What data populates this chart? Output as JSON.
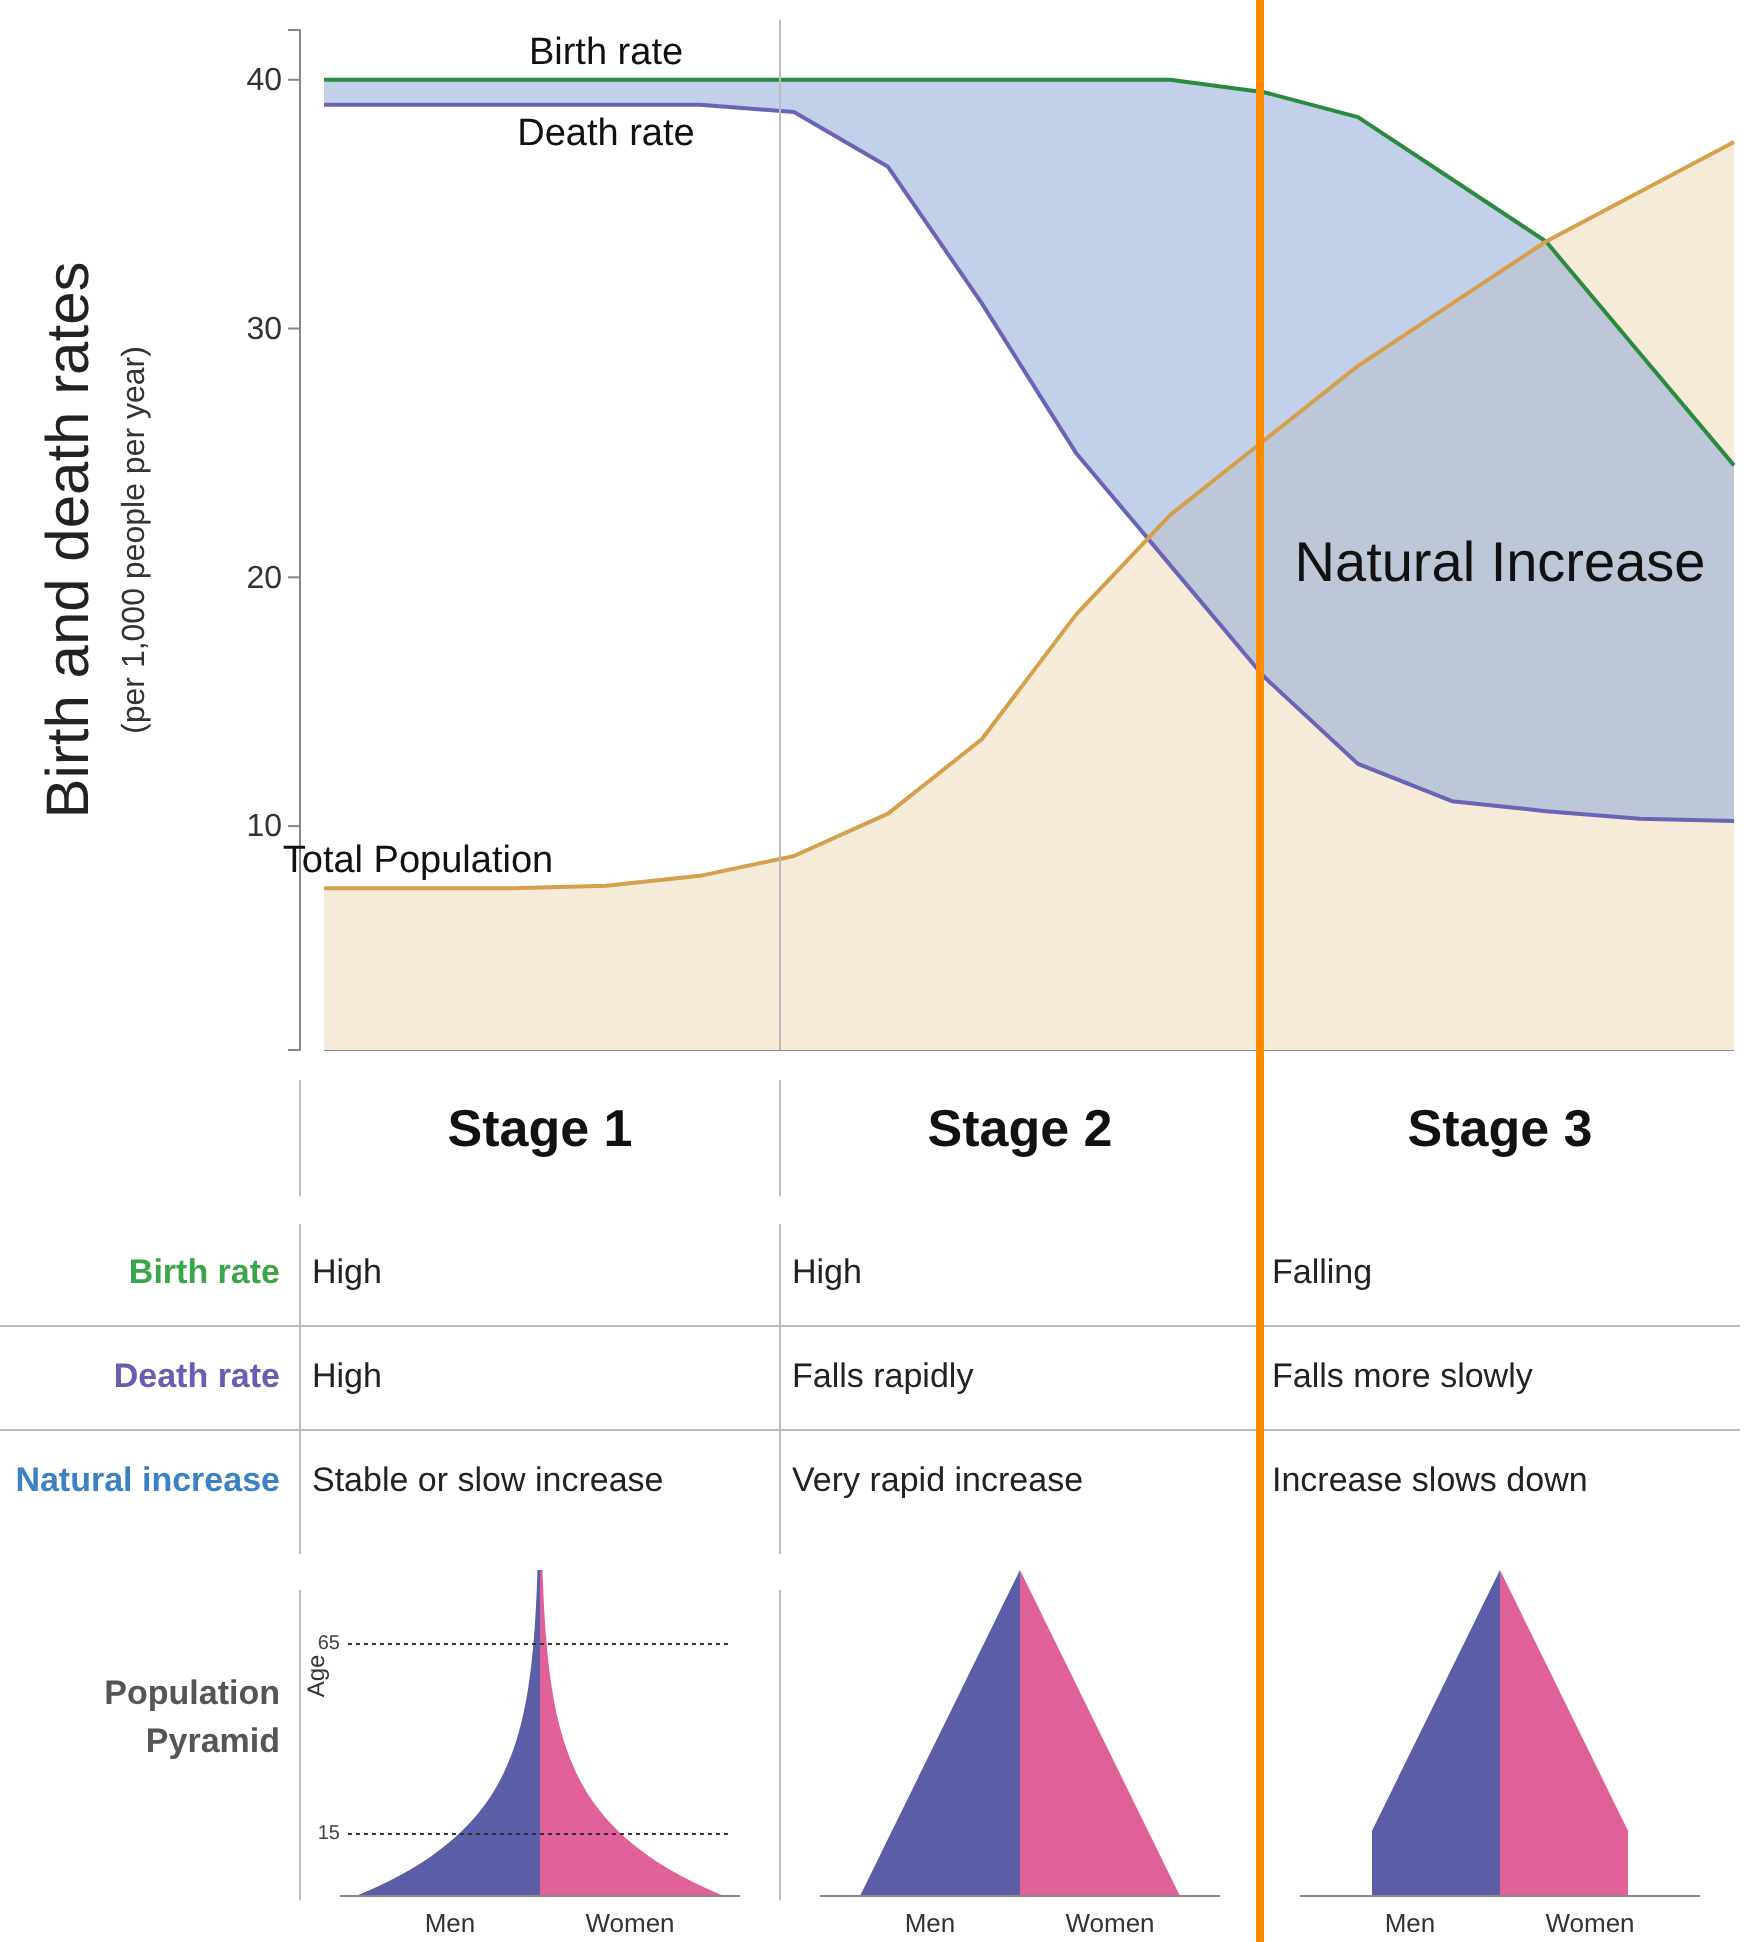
{
  "chart_data": [
    {
      "type": "line",
      "ylabel": "Birth and death rates",
      "categories": [
        null,
        null,
        null,
        null,
        null,
        null,
        null,
        null,
        null,
        null,
        null,
        null,
        null,
        null,
        null,
        null
      ],
      "ylim": [
        1,
        42
      ],
      "yticks": [
        10,
        20,
        30,
        40
      ],
      "tick_labels": "y",
      "series": [
        {
          "name": "Birth rate",
          "type": "line",
          "color": "#2a8a3e",
          "values": [
            40,
            40,
            40,
            40,
            40,
            40,
            40,
            40,
            40,
            40,
            39.5,
            38.5,
            36,
            33.5,
            29,
            24.5
          ],
          "lower": [
            39,
            39,
            39,
            39,
            39,
            38.7,
            36.5,
            31,
            25,
            20.5,
            16,
            12.5,
            11,
            10.6,
            10.3,
            10.2
          ],
          "upper": [
            40,
            40,
            40,
            40,
            40,
            40,
            40,
            40,
            40,
            40,
            39.5,
            38.5,
            36,
            33.5,
            29,
            24.5
          ]
        },
        {
          "name": "Death rate",
          "type": "line",
          "color": "#6b63b5",
          "values": [
            39,
            39,
            39,
            39,
            39,
            38.7,
            36.5,
            31,
            25,
            20.5,
            16,
            12.5,
            11,
            10.6,
            10.3,
            10.2
          ]
        },
        {
          "name": "Total Population",
          "type": "area",
          "color": "#d4a04c",
          "values": [
            7.5,
            7.5,
            7.5,
            7.6,
            8,
            8.8,
            10.5,
            13.5,
            18.5,
            22.5,
            25.5,
            28.5,
            31,
            33.5,
            35.5,
            37.5
          ]
        }
      ],
      "annotations": [
        "(per 1,000 people per year)",
        "Natural Increase"
      ]
    },
    {
      "type": "other",
      "categories": [
        "Stage 1",
        "Stage 2",
        "Stage 3"
      ],
      "y_categories": [
        "Birth rate",
        "Death rate",
        "Natural increase"
      ],
      "colors": [
        "#3aa64a",
        "#6a5cb0",
        "#3b82c4"
      ],
      "cell_labels": [
        [
          "High",
          "High",
          "Falling"
        ],
        [
          "High",
          "Falls rapidly",
          "Falls more slowly"
        ],
        [
          "Stable or slow increase",
          "Very rapid increase",
          "Increase slows down"
        ]
      ],
      "annotations": [
        "Population Pyramid",
        "Age",
        "65",
        "15",
        "Men",
        "Women",
        "Men",
        "Women",
        "Men",
        "Women"
      ]
    }
  ]
}
